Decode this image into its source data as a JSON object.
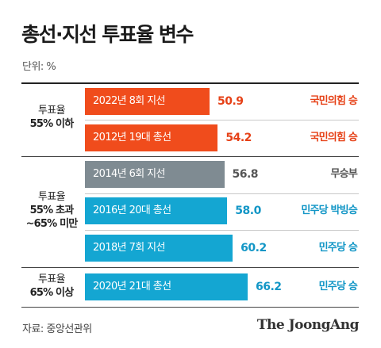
{
  "title": "총선·지선 투표율 변수",
  "unit": "단위: %",
  "source": "자료: 중앙선관위",
  "logo_text": "The JoongAng",
  "colors": {
    "local_2022": "#f04c1c",
    "general_2012": "#f04c1c",
    "local_2014": "#7f8b92",
    "blue": "#14a6d2",
    "red_text": "#e64117",
    "gray_text": "#555555",
    "blue_text": "#1296c6"
  },
  "groups": [
    {
      "line1": "투표율",
      "line2": "55% 이하",
      "line3": ""
    },
    {
      "line1": "투표율",
      "line2": "55% 초과",
      "line3": "~65% 미만"
    },
    {
      "line1": "투표율",
      "line2": "65% 이상",
      "line3": ""
    }
  ],
  "chart_data": {
    "type": "bar",
    "orientation": "horizontal",
    "title": "총선·지선 투표율 변수",
    "unit": "%",
    "categories": [
      "2022년 8회 지선",
      "2012년 19대 총선",
      "2014년 6회 지선",
      "2016년 20대 총선",
      "2018년 7회 지선",
      "2020년 21대 총선"
    ],
    "values": [
      50.9,
      54.2,
      56.8,
      58.0,
      60.2,
      66.2
    ],
    "value_labels": [
      "50.9",
      "54.2",
      "56.8",
      "58.0",
      "60.2",
      "66.2"
    ],
    "winners": [
      "국민의힘 승",
      "국민의힘 승",
      "무승부",
      "민주당 박빙승",
      "민주당 승",
      "민주당 승"
    ],
    "bar_colors": [
      "#f04c1c",
      "#f04c1c",
      "#7f8b92",
      "#14a6d2",
      "#14a6d2",
      "#14a6d2"
    ],
    "winner_colors": [
      "#e64117",
      "#e64117",
      "#555555",
      "#1296c6",
      "#1296c6",
      "#1296c6"
    ],
    "groups": [
      [
        0,
        1
      ],
      [
        2,
        3,
        4
      ],
      [
        5
      ]
    ]
  }
}
